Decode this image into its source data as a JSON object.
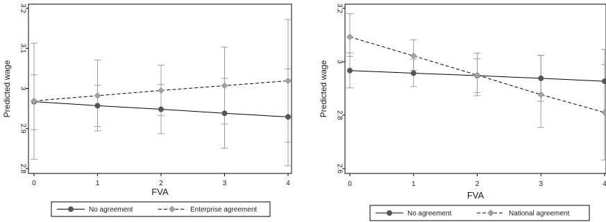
{
  "colors": {
    "series_no_agreement": "#555555",
    "series_agreement": "#a0a0a0",
    "error_bar": "#9a9a9a",
    "axis": "#000000",
    "background": "#ffffff"
  },
  "chart_data": [
    {
      "type": "line",
      "xlabel": "FVA",
      "ylabel": "Predicted wage",
      "x": [
        0,
        1,
        2,
        3,
        4
      ],
      "xticks": [
        "0",
        "1",
        "2",
        "3",
        "4"
      ],
      "yticks": [
        "2.8",
        "2.9",
        "3",
        "3.1",
        "3.2"
      ],
      "xlim": [
        0,
        4
      ],
      "ylim": [
        2.8,
        3.2
      ],
      "grid": false,
      "legend_position": "bottom",
      "series": [
        {
          "name": "No agreement",
          "marker": "circle",
          "linestyle": "solid",
          "values": [
            2.967,
            2.957,
            2.948,
            2.938,
            2.929
          ],
          "ci_low": [
            2.897,
            2.905,
            2.887,
            2.851,
            2.807
          ],
          "ci_high": [
            3.034,
            3.008,
            3.01,
            3.025,
            3.049
          ]
        },
        {
          "name": "Enterprise agreement",
          "marker": "diamond",
          "linestyle": "dashed",
          "values": [
            2.969,
            2.982,
            2.995,
            3.007,
            3.019
          ],
          "ci_low": [
            2.823,
            2.894,
            2.932,
            2.911,
            2.866
          ],
          "ci_high": [
            3.113,
            3.071,
            3.058,
            3.103,
            3.172
          ]
        }
      ]
    },
    {
      "type": "line",
      "xlabel": "FVA",
      "ylabel": "Predicted wage",
      "x": [
        0,
        1,
        2,
        3,
        4
      ],
      "xticks": [
        "0",
        "1",
        "2",
        "3",
        "4"
      ],
      "yticks": [
        "2.6",
        "2.8",
        "3",
        "3.2"
      ],
      "xlim": [
        0,
        4
      ],
      "ylim": [
        2.6,
        3.2
      ],
      "grid": false,
      "legend_position": "bottom",
      "series": [
        {
          "name": "No agreement",
          "marker": "circle",
          "linestyle": "solid",
          "values": [
            2.967,
            2.957,
            2.948,
            2.938,
            2.927
          ],
          "ci_low": [
            2.902,
            2.907,
            2.885,
            2.852,
            2.811
          ],
          "ci_high": [
            3.033,
            3.01,
            3.011,
            3.024,
            3.046
          ]
        },
        {
          "name": "National agreement",
          "marker": "diamond",
          "linestyle": "dashed",
          "values": [
            3.093,
            3.022,
            2.95,
            2.877,
            2.81
          ],
          "ci_low": [
            3.02,
            2.968,
            2.873,
            2.754,
            2.632
          ],
          "ci_high": [
            3.18,
            3.082,
            3.032,
            3.024,
            2.99
          ]
        }
      ]
    }
  ]
}
